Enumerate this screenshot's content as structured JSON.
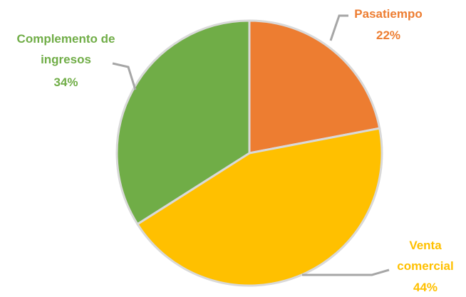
{
  "chart_data": {
    "type": "pie",
    "categories": [
      "Pasatiempo",
      "Venta comercial",
      "Complemento de ingresos"
    ],
    "values": [
      22,
      44,
      34
    ],
    "value_labels": [
      "22%",
      "44%",
      "34%"
    ],
    "colors": [
      "#ed7d31",
      "#ffc000",
      "#70ad47"
    ]
  }
}
